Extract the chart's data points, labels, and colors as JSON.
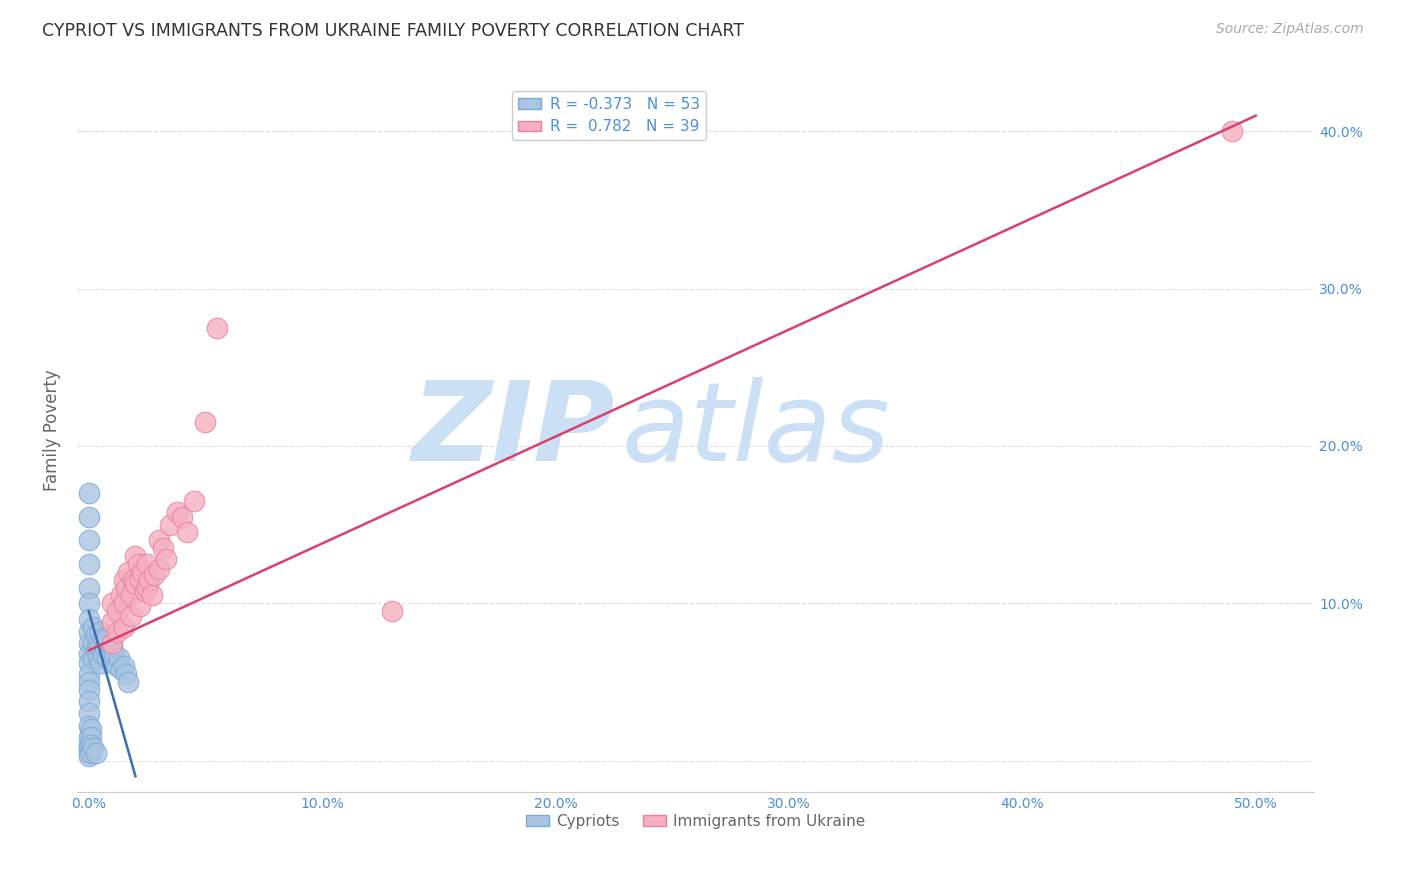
{
  "title": "CYPRIOT VS IMMIGRANTS FROM UKRAINE FAMILY POVERTY CORRELATION CHART",
  "source": "Source: ZipAtlas.com",
  "ylabel": "Family Poverty",
  "x_ticks": [
    0.0,
    0.1,
    0.2,
    0.3,
    0.4,
    0.5
  ],
  "x_tick_labels": [
    "0.0%",
    "10.0%",
    "20.0%",
    "30.0%",
    "40.0%",
    "50.0%"
  ],
  "y_ticks": [
    0.0,
    0.1,
    0.2,
    0.3,
    0.4
  ],
  "y_tick_labels": [
    "",
    "10.0%",
    "20.0%",
    "30.0%",
    "40.0%"
  ],
  "xlim": [
    -0.005,
    0.525
  ],
  "ylim": [
    -0.02,
    0.44
  ],
  "cypriot_color": "#aac4e2",
  "ukraine_color": "#f5afc0",
  "cypriot_edge": "#7aaad4",
  "ukraine_edge": "#e880a0",
  "trend_cypriot_color": "#3a6eaf",
  "trend_ukraine_color": "#d84070",
  "legend_cypriot_label": "R = -0.373   N = 53",
  "legend_ukraine_label": "R =  0.782   N = 39",
  "legend_bottom_cypriot": "Cypriots",
  "legend_bottom_ukraine": "Immigrants from Ukraine",
  "watermark_zip": "ZIP",
  "watermark_atlas": "atlas",
  "grid_color": "#dddddd",
  "bg_color": "#ffffff",
  "title_color": "#333333",
  "source_color": "#aaaaaa",
  "axis_label_color": "#666666",
  "tick_color": "#4a90d9",
  "watermark_color": "#cce0f5",
  "cypriot_x": [
    0.0,
    0.0,
    0.0,
    0.0,
    0.0,
    0.0,
    0.0,
    0.0,
    0.0,
    0.0,
    0.0,
    0.0,
    0.0,
    0.0,
    0.0,
    0.0,
    0.0,
    0.002,
    0.002,
    0.002,
    0.003,
    0.003,
    0.004,
    0.004,
    0.005,
    0.005,
    0.005,
    0.006,
    0.006,
    0.007,
    0.008,
    0.008,
    0.009,
    0.01,
    0.01,
    0.011,
    0.012,
    0.013,
    0.014,
    0.015,
    0.016,
    0.017,
    0.0,
    0.0,
    0.0,
    0.0,
    0.0,
    0.001,
    0.001,
    0.001,
    0.001,
    0.002,
    0.003
  ],
  "cypriot_y": [
    0.17,
    0.155,
    0.14,
    0.125,
    0.11,
    0.1,
    0.09,
    0.082,
    0.075,
    0.068,
    0.062,
    0.055,
    0.05,
    0.045,
    0.038,
    0.03,
    0.022,
    0.085,
    0.075,
    0.065,
    0.08,
    0.07,
    0.075,
    0.065,
    0.082,
    0.072,
    0.062,
    0.078,
    0.068,
    0.072,
    0.078,
    0.065,
    0.068,
    0.072,
    0.062,
    0.068,
    0.06,
    0.065,
    0.058,
    0.06,
    0.055,
    0.05,
    0.015,
    0.01,
    0.008,
    0.005,
    0.003,
    0.02,
    0.015,
    0.01,
    0.005,
    0.008,
    0.005
  ],
  "ukraine_x": [
    0.01,
    0.01,
    0.01,
    0.012,
    0.012,
    0.014,
    0.015,
    0.015,
    0.015,
    0.016,
    0.017,
    0.018,
    0.018,
    0.019,
    0.02,
    0.02,
    0.021,
    0.022,
    0.022,
    0.023,
    0.024,
    0.025,
    0.025,
    0.026,
    0.027,
    0.028,
    0.03,
    0.03,
    0.032,
    0.033,
    0.035,
    0.038,
    0.04,
    0.042,
    0.045,
    0.05,
    0.055,
    0.13,
    0.49
  ],
  "ukraine_y": [
    0.1,
    0.088,
    0.075,
    0.095,
    0.082,
    0.105,
    0.115,
    0.1,
    0.085,
    0.11,
    0.12,
    0.105,
    0.092,
    0.115,
    0.13,
    0.112,
    0.125,
    0.115,
    0.098,
    0.12,
    0.108,
    0.125,
    0.11,
    0.115,
    0.105,
    0.118,
    0.14,
    0.122,
    0.135,
    0.128,
    0.15,
    0.158,
    0.155,
    0.145,
    0.165,
    0.215,
    0.275,
    0.095,
    0.4
  ],
  "cyp_trend_x0": 0.0,
  "cyp_trend_y0": 0.095,
  "cyp_trend_x1": 0.02,
  "cyp_trend_y1": -0.01,
  "ukr_trend_x0": 0.0,
  "ukr_trend_y0": 0.07,
  "ukr_trend_x1": 0.5,
  "ukr_trend_y1": 0.41
}
